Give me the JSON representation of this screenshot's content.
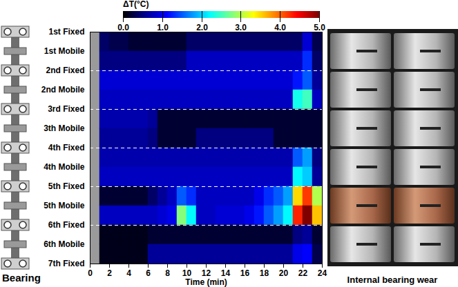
{
  "chart_data": {
    "type": "heatmap",
    "xlabel": "Time (min)",
    "ylabel": "Bearing",
    "xlim": [
      0,
      24
    ],
    "xticks": [
      0,
      2,
      4,
      6,
      8,
      10,
      12,
      14,
      16,
      18,
      20,
      22,
      24
    ],
    "ylim": [
      0,
      12
    ],
    "yticks": [
      {
        "value": 0,
        "label": "1st Fixed"
      },
      {
        "value": 1,
        "label": "1st Mobile"
      },
      {
        "value": 2,
        "label": "2nd Fixed"
      },
      {
        "value": 3,
        "label": "2nd Mobile"
      },
      {
        "value": 4,
        "label": "3rd Fixed"
      },
      {
        "value": 5,
        "label": "3th Mobile"
      },
      {
        "value": 6,
        "label": "4th Fixed"
      },
      {
        "value": 7,
        "label": "4th Mobile"
      },
      {
        "value": 8,
        "label": "5th Fixed"
      },
      {
        "value": 9,
        "label": "5th Mobile"
      },
      {
        "value": 10,
        "label": "6th Fixed"
      },
      {
        "value": 11,
        "label": "6th Mobile"
      },
      {
        "value": 12,
        "label": "7th Fixed"
      }
    ],
    "dividers": [
      2,
      4,
      6,
      8,
      10
    ],
    "x_bins": [
      0,
      1,
      2,
      3,
      4,
      5,
      6,
      7,
      8,
      9,
      10,
      11,
      12,
      13,
      14,
      15,
      16,
      17,
      18,
      19,
      20,
      21,
      22,
      23,
      24
    ],
    "y_bins": [
      0,
      1,
      2,
      3,
      4,
      5,
      6,
      7,
      8,
      9,
      10,
      11,
      12
    ],
    "values": [
      [
        null,
        0.4,
        0.3,
        0.3,
        0.2,
        0.2,
        0.2,
        0.2,
        0.2,
        0.2,
        0.4,
        0.4,
        0.4,
        0.4,
        0.4,
        0.4,
        0.4,
        0.4,
        0.4,
        0.4,
        0.4,
        0.4,
        0.9,
        0.3
      ],
      [
        null,
        0.5,
        0.5,
        0.5,
        0.5,
        0.5,
        0.5,
        0.5,
        0.5,
        0.5,
        0.8,
        0.8,
        0.8,
        0.8,
        0.8,
        0.8,
        0.8,
        0.8,
        0.8,
        0.8,
        0.8,
        0.8,
        1.3,
        0.4
      ],
      [
        null,
        0.9,
        0.9,
        0.9,
        0.9,
        0.9,
        0.9,
        0.9,
        0.9,
        0.9,
        0.9,
        0.9,
        0.9,
        0.9,
        0.9,
        0.9,
        0.9,
        0.9,
        0.9,
        0.9,
        0.9,
        1.2,
        1.5,
        0.6
      ],
      [
        null,
        0.8,
        0.8,
        0.8,
        0.8,
        0.8,
        0.8,
        0.8,
        0.8,
        0.8,
        0.8,
        0.8,
        0.8,
        0.8,
        0.8,
        0.8,
        0.8,
        0.8,
        0.8,
        0.8,
        0.8,
        2.3,
        2.5,
        0.8
      ],
      [
        null,
        0.7,
        0.7,
        0.7,
        0.7,
        0.7,
        0.6,
        0.2,
        0.2,
        0.2,
        0.2,
        0.2,
        0.2,
        0.2,
        0.2,
        0.2,
        0.2,
        0.2,
        0.2,
        0.2,
        0.2,
        0.2,
        0.2,
        0.2
      ],
      [
        null,
        0.6,
        0.6,
        0.6,
        0.6,
        0.6,
        0.5,
        0.2,
        0.2,
        0.2,
        0.2,
        0.5,
        0.5,
        0.5,
        0.5,
        0.5,
        0.5,
        0.5,
        0.5,
        0.2,
        0.2,
        0.2,
        0.2,
        0.2
      ],
      [
        null,
        0.7,
        0.7,
        0.7,
        0.7,
        0.7,
        0.7,
        0.7,
        0.7,
        0.7,
        0.7,
        0.7,
        0.7,
        0.7,
        0.7,
        0.7,
        0.7,
        0.7,
        0.7,
        0.7,
        0.7,
        1.5,
        1.8,
        0.5
      ],
      [
        null,
        0.8,
        0.8,
        0.8,
        0.8,
        0.8,
        0.8,
        0.8,
        0.8,
        0.8,
        0.8,
        0.8,
        0.8,
        0.8,
        0.8,
        0.8,
        0.8,
        0.8,
        0.8,
        0.8,
        0.8,
        2.2,
        2.0,
        0.6
      ],
      [
        null,
        0.2,
        0.2,
        0.2,
        0.2,
        0.2,
        0.4,
        0.6,
        0.8,
        1.5,
        1.3,
        0.8,
        0.8,
        0.8,
        0.8,
        0.8,
        0.8,
        1.0,
        1.3,
        1.5,
        1.8,
        3.5,
        4.2,
        3.0
      ],
      [
        null,
        0.8,
        0.8,
        0.8,
        0.8,
        0.8,
        0.8,
        0.9,
        1.0,
        2.8,
        2.2,
        0.8,
        0.8,
        0.9,
        0.9,
        0.9,
        1.0,
        1.2,
        1.5,
        1.8,
        2.2,
        4.3,
        5,
        3.6
      ],
      [
        null,
        0.1,
        0.1,
        0.1,
        0.1,
        0.1,
        0.2,
        0.2,
        0.2,
        0.2,
        0.2,
        0.2,
        0.2,
        0.2,
        0.2,
        0.2,
        0.2,
        0.2,
        0.2,
        0.2,
        0.2,
        0.5,
        0.6,
        0.2
      ],
      [
        null,
        0.1,
        0.1,
        0.1,
        0.1,
        0.1,
        0.6,
        0.6,
        0.6,
        0.6,
        0.6,
        0.6,
        0.6,
        0.6,
        0.6,
        0.6,
        0.6,
        0.6,
        0.6,
        0.6,
        0.6,
        1.0,
        1.1,
        0.3
      ]
    ],
    "colorbar": {
      "label": "ΔT(°C)",
      "range": [
        0,
        5
      ],
      "ticks": [
        0,
        1,
        2,
        3,
        4,
        5
      ]
    },
    "photo_label": "Internal bearing wear"
  }
}
